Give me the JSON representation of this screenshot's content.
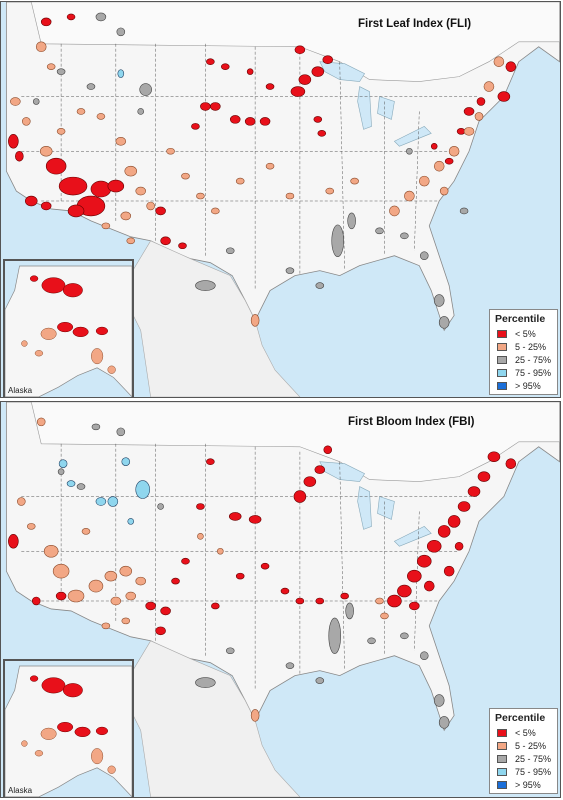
{
  "panels": [
    {
      "title": "First Leaf Index (FLI)",
      "inset_label": "Alaska",
      "legend_title": "Percentile"
    },
    {
      "title": "First Bloom Index (FBI)",
      "inset_label": "Alaska",
      "legend_title": "Percentile"
    }
  ],
  "legend": [
    {
      "label": "< 5%",
      "color": "#e8101a"
    },
    {
      "label": "5 - 25%",
      "color": "#f2a785"
    },
    {
      "label": "25 - 75%",
      "color": "#a8a8a8"
    },
    {
      "label": "75 - 95%",
      "color": "#8fd6ee"
    },
    {
      "label": "> 95%",
      "color": "#1a6ed8"
    }
  ]
}
